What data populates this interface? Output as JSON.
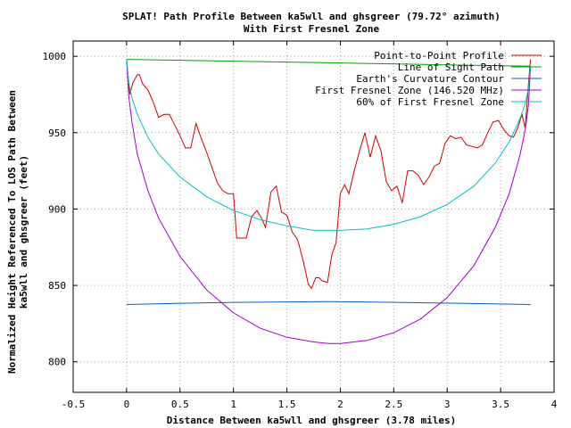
{
  "chart_data": {
    "type": "line",
    "title": "SPLAT! Path Profile Between ka5wll and ghsgreer (79.72° azimuth)",
    "subtitle": "With First Fresnel Zone",
    "xlabel": "Distance Between ka5wll and ghsgreer (3.78 miles)",
    "ylabel_line1": "Normalized Height Referenced To LOS Path Between",
    "ylabel_line2": "ka5wll and ghsgreer (feet)",
    "xlim": [
      -0.5,
      4
    ],
    "ylim": [
      780,
      1010
    ],
    "x_ticks": [
      -0.5,
      0,
      0.5,
      1,
      1.5,
      2,
      2.5,
      3,
      3.5,
      4
    ],
    "x_tick_labels": [
      "-0.5",
      "0",
      "0.5",
      "1",
      "1.5",
      "2",
      "2.5",
      "3",
      "3.5",
      "4"
    ],
    "y_ticks": [
      800,
      850,
      900,
      950,
      1000
    ],
    "y_tick_labels": [
      "800",
      "850",
      "900",
      "950",
      "1000"
    ],
    "grid": true,
    "legend_position": "top-right",
    "series": [
      {
        "name": "Point-to-Point Profile",
        "color": "#cc0000",
        "x": [
          0,
          0.03,
          0.06,
          0.1,
          0.12,
          0.15,
          0.2,
          0.25,
          0.3,
          0.35,
          0.4,
          0.45,
          0.5,
          0.55,
          0.6,
          0.65,
          0.7,
          0.75,
          0.8,
          0.85,
          0.9,
          0.95,
          1.0,
          1.03,
          1.07,
          1.12,
          1.17,
          1.22,
          1.27,
          1.3,
          1.35,
          1.4,
          1.45,
          1.5,
          1.55,
          1.6,
          1.65,
          1.7,
          1.73,
          1.77,
          1.8,
          1.83,
          1.88,
          1.92,
          1.96,
          2.0,
          2.04,
          2.08,
          2.13,
          2.18,
          2.23,
          2.28,
          2.33,
          2.38,
          2.43,
          2.48,
          2.53,
          2.58,
          2.63,
          2.68,
          2.73,
          2.78,
          2.83,
          2.88,
          2.93,
          2.98,
          3.03,
          3.08,
          3.13,
          3.18,
          3.23,
          3.28,
          3.33,
          3.38,
          3.43,
          3.48,
          3.53,
          3.58,
          3.62,
          3.66,
          3.7,
          3.73,
          3.76,
          3.78
        ],
        "y": [
          998,
          975,
          983,
          988,
          988,
          982,
          978,
          970,
          960,
          962,
          962,
          955,
          948,
          940,
          940,
          956,
          946,
          937,
          927,
          917,
          912,
          910,
          910,
          881,
          881,
          881,
          895,
          899,
          893,
          888,
          911,
          915,
          898,
          896,
          885,
          880,
          867,
          851,
          848,
          855,
          855,
          853,
          852,
          870,
          878,
          910,
          916,
          910,
          925,
          938,
          950,
          934,
          948,
          938,
          918,
          912,
          915,
          904,
          925,
          925,
          922,
          916,
          921,
          928,
          930,
          943,
          948,
          946,
          947,
          942,
          941,
          940,
          942,
          950,
          957,
          958,
          952,
          948,
          947,
          953,
          962,
          953,
          982,
          998
        ]
      },
      {
        "name": "Line of Sight Path",
        "color": "#00a000",
        "x": [
          0,
          3.78
        ],
        "y": [
          998,
          993.5
        ]
      },
      {
        "name": "Earth's Curvature Contour",
        "color": "#0060c0",
        "x": [
          0,
          0.5,
          1.0,
          1.5,
          1.89,
          2.3,
          2.8,
          3.3,
          3.78
        ],
        "y": [
          837.5,
          838.3,
          838.9,
          839.2,
          839.4,
          839.1,
          838.6,
          838.1,
          837.5
        ]
      },
      {
        "name": "First Fresnel Zone (146.520 MHz)",
        "color": "#a000c0",
        "x": [
          0,
          0.02,
          0.05,
          0.1,
          0.2,
          0.3,
          0.5,
          0.75,
          1.0,
          1.25,
          1.5,
          1.75,
          1.89,
          2.0,
          2.25,
          2.5,
          2.75,
          3.0,
          3.25,
          3.45,
          3.58,
          3.68,
          3.73,
          3.76,
          3.78
        ],
        "y": [
          998,
          974,
          957,
          936,
          912,
          894,
          869,
          847,
          832,
          822,
          816,
          813,
          812,
          812,
          814,
          819,
          828,
          842,
          863,
          888,
          910,
          935,
          952,
          968,
          993
        ]
      },
      {
        "name": "60% of First Fresnel Zone",
        "color": "#00c0c0",
        "x": [
          0,
          0.02,
          0.05,
          0.1,
          0.2,
          0.3,
          0.5,
          0.75,
          1.0,
          1.25,
          1.5,
          1.75,
          1.89,
          2.0,
          2.25,
          2.5,
          2.75,
          3.0,
          3.25,
          3.45,
          3.58,
          3.68,
          3.73,
          3.76,
          3.78
        ],
        "y": [
          998,
          983,
          973,
          962,
          947,
          936,
          921,
          908,
          899,
          893,
          889,
          886,
          886,
          886,
          887,
          890,
          895,
          903,
          915,
          930,
          944,
          959,
          969,
          979,
          993
        ]
      }
    ]
  }
}
